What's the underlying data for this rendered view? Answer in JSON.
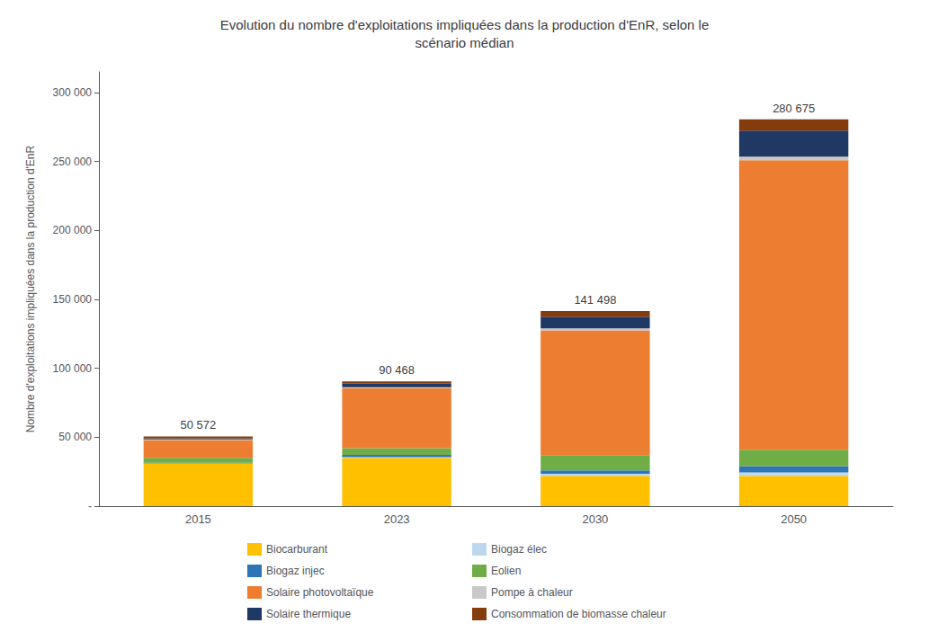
{
  "chart_data": {
    "type": "bar",
    "title": "Evolution du nombre d'exploitations impliquées dans la production d'EnR, selon le\nscénario médian",
    "ylabel": "Nombre d'exploitations impliquées dans la production d'EnR",
    "categories": [
      "2015",
      "2023",
      "2030",
      "2050"
    ],
    "stacked": true,
    "grid": false,
    "legend": "bottom",
    "series": [
      {
        "name": "Biocarburant",
        "color": "#FFC000",
        "values": [
          30600,
          35000,
          22000,
          22000
        ]
      },
      {
        "name": "Biogaz élec",
        "color": "#BDD7EE",
        "values": [
          300,
          600,
          1500,
          2500
        ]
      },
      {
        "name": "Biogaz injec",
        "color": "#2E75B6",
        "values": [
          600,
          1500,
          2500,
          4500
        ]
      },
      {
        "name": "Eolien",
        "color": "#70AD47",
        "values": [
          3500,
          5000,
          11000,
          12000
        ]
      },
      {
        "name": "Solaire photovoltaïque",
        "color": "#ED7D31",
        "values": [
          13000,
          43500,
          90500,
          210000
        ]
      },
      {
        "name": "Pompe à chaleur",
        "color": "#C9C9C9",
        "values": [
          400,
          700,
          1500,
          2500
        ]
      },
      {
        "name": "Solaire thermique",
        "color": "#203864",
        "values": [
          800,
          2500,
          8500,
          19000
        ]
      },
      {
        "name": "Consommation de biomasse chaleur",
        "color": "#843C0C",
        "values": [
          1372,
          1668,
          3998,
          8175
        ]
      }
    ],
    "annotations": [
      {
        "category": "2015",
        "value": 50572,
        "label": "50 572"
      },
      {
        "category": "2023",
        "value": 90468,
        "label": "90 468"
      },
      {
        "category": "2030",
        "value": 141498,
        "label": "141 498"
      },
      {
        "category": "2050",
        "value": 280675,
        "label": "280 675"
      }
    ],
    "ylim": [
      0,
      315000
    ],
    "yticks": [
      {
        "value": 0,
        "label": "-"
      },
      {
        "value": 50000,
        "label": "50 000"
      },
      {
        "value": 100000,
        "label": "100 000"
      },
      {
        "value": 150000,
        "label": "150 000"
      },
      {
        "value": 200000,
        "label": "200 000"
      },
      {
        "value": 250000,
        "label": "250 000"
      },
      {
        "value": 300000,
        "label": "300 000"
      }
    ]
  }
}
